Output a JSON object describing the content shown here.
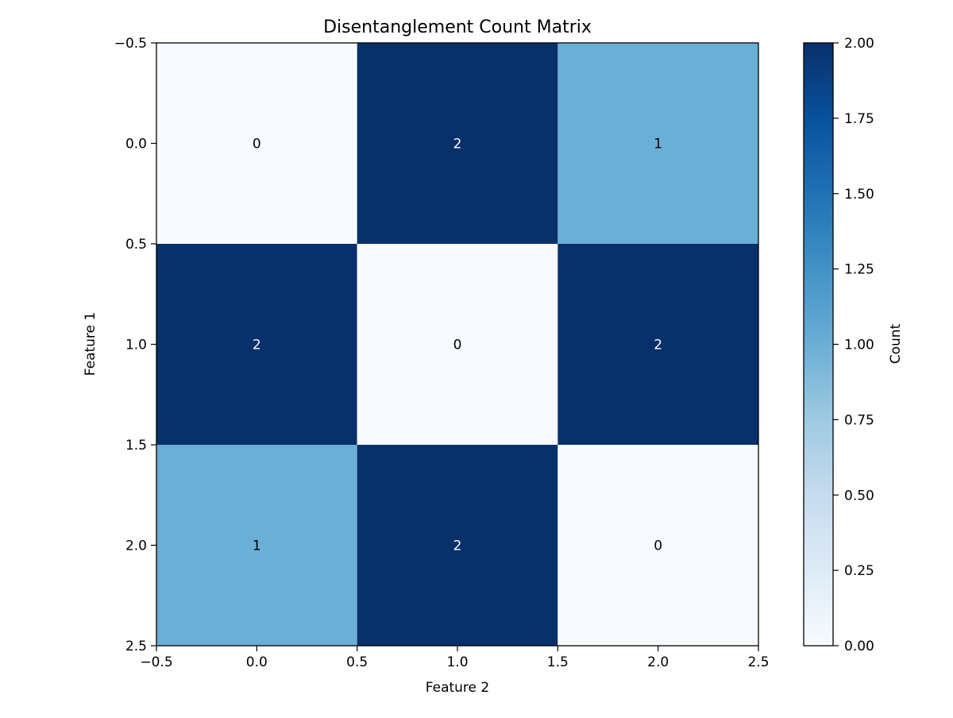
{
  "chart_data": {
    "type": "heatmap",
    "title": "Disentanglement Count Matrix",
    "xlabel": "Feature 2",
    "ylabel": "Feature 1",
    "colorbar_label": "Count",
    "matrix": [
      [
        0,
        2,
        1
      ],
      [
        2,
        0,
        2
      ],
      [
        1,
        2,
        0
      ]
    ],
    "xlim": [
      -0.5,
      2.5
    ],
    "ylim": [
      2.5,
      -0.5
    ],
    "x_ticks": [
      -0.5,
      0.0,
      0.5,
      1.0,
      1.5,
      2.0,
      2.5
    ],
    "x_tick_labels": [
      "−0.5",
      "0.0",
      "0.5",
      "1.0",
      "1.5",
      "2.0",
      "2.5"
    ],
    "y_ticks": [
      -0.5,
      0.0,
      0.5,
      1.0,
      1.5,
      2.0,
      2.5
    ],
    "y_tick_labels": [
      "−0.5",
      "0.0",
      "0.5",
      "1.0",
      "1.5",
      "2.0",
      "2.5"
    ],
    "colorbar_range": [
      0,
      2
    ],
    "colorbar_ticks": [
      0.0,
      0.25,
      0.5,
      0.75,
      1.0,
      1.25,
      1.5,
      1.75,
      2.0
    ],
    "colorbar_tick_labels": [
      "0.00",
      "0.25",
      "0.50",
      "0.75",
      "1.00",
      "1.25",
      "1.50",
      "1.75",
      "2.00"
    ],
    "colormap": "Blues",
    "colormap_stops": [
      "#f7fbff",
      "#deebf7",
      "#c6dbef",
      "#9ecae1",
      "#6baed6",
      "#4292c6",
      "#2171b5",
      "#08519c",
      "#08306b"
    ],
    "label_color_light": "#000000",
    "label_color_dark": "#ffffff"
  }
}
